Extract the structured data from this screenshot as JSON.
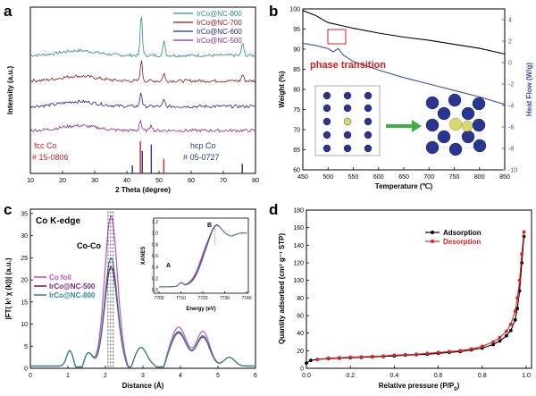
{
  "chart_data": [
    {
      "panel": "a",
      "type": "line",
      "xlabel": "2 Theta  (degree)",
      "ylabel": "Intensity (a.u.)",
      "xlim": [
        10,
        80
      ],
      "xticks": [
        "10",
        "20",
        "30",
        "40",
        "50",
        "60",
        "70",
        "80"
      ],
      "legend_position": "top-right",
      "series": [
        {
          "name": "IrCo@NC-800",
          "color": "#2e8b8b",
          "offset": 3.0,
          "peaks": [
            [
              44.5,
              1.6
            ],
            [
              51.6,
              0.6
            ],
            [
              76.0,
              0.5
            ]
          ]
        },
        {
          "name": "IrCo@NC-700",
          "color": "#8b1a1a",
          "offset": 2.05,
          "peaks": [
            [
              44.5,
              0.8
            ],
            [
              51.5,
              0.3
            ],
            [
              76.0,
              0.25
            ]
          ]
        },
        {
          "name": "IrCo@NC-600",
          "color": "#1f2a8c",
          "offset": 1.1,
          "peaks": [
            [
              44.4,
              0.55
            ],
            [
              51.5,
              0.25
            ]
          ]
        },
        {
          "name": "IrCo@NC-500",
          "color": "#8b2b8b",
          "offset": 0.2,
          "peaks": [
            [
              44.2,
              0.4
            ],
            [
              47.5,
              0.25
            ]
          ]
        }
      ],
      "reference_bars": [
        {
          "name": "fcc Co",
          "card": "# 15-0806",
          "color": "#d02020",
          "positions": [
            44.2,
            51.5,
            75.9
          ],
          "heights": [
            1.0,
            0.45,
            0.25
          ]
        },
        {
          "name": "hcp  Co",
          "card": "# 05-0727",
          "color": "#1f3a9a",
          "positions": [
            41.7,
            44.8,
            47.6,
            75.9
          ],
          "heights": [
            0.25,
            0.7,
            0.9,
            0.3
          ]
        }
      ]
    },
    {
      "panel": "b",
      "type": "line",
      "xlabel": "Temperature (℃)",
      "ylabel": "Weight (%)",
      "y2label": "Heat Flow (W/g)",
      "xlim": [
        450,
        850
      ],
      "ylim": [
        60,
        100
      ],
      "y2lim": [
        -10,
        5
      ],
      "xticks": [
        "450",
        "500",
        "550",
        "600",
        "650",
        "700",
        "750",
        "800",
        "850"
      ],
      "yticks": [
        "60",
        "65",
        "70",
        "75",
        "80",
        "85",
        "90",
        "95",
        "100"
      ],
      "y2ticks": [
        "-10",
        "-8",
        "-6",
        "-4",
        "-2",
        "0",
        "2",
        "4"
      ],
      "annotation": "phase  transition",
      "series": [
        {
          "name": "Weight",
          "color": "#000000",
          "axis": "left",
          "x": [
            450,
            475,
            500,
            525,
            550,
            600,
            650,
            700,
            750,
            800,
            850
          ],
          "y": [
            99.6,
            98.4,
            96.6,
            95.9,
            95.2,
            94.0,
            93.0,
            92.2,
            91.2,
            90.2,
            88.8
          ]
        },
        {
          "name": "Heat Flow",
          "color": "#3a50a8",
          "axis": "right",
          "x": [
            450,
            475,
            500,
            510,
            520,
            530,
            550,
            600,
            650,
            700,
            750,
            800,
            850
          ],
          "y": [
            1.8,
            1.6,
            1.3,
            1.0,
            1.3,
            0.7,
            0.1,
            -0.7,
            -1.4,
            -2.0,
            -2.6,
            -3.2,
            -3.9
          ]
        }
      ]
    },
    {
      "panel": "c",
      "type": "line",
      "title": "Co K-edge",
      "annotation": "Co-Co",
      "xlabel": "Distance (Å)",
      "ylabel": "|FT( k³ χ (k))| (a.u.)",
      "xlim": [
        0,
        6
      ],
      "ylim": [
        0,
        36
      ],
      "xticks": [
        "0",
        "1",
        "2",
        "3",
        "4",
        "5",
        "6"
      ],
      "yticks": [
        "0",
        "5",
        "10",
        "15",
        "20",
        "25",
        "30",
        "35"
      ],
      "legend_position": "middle-left",
      "series": [
        {
          "name": "Co foil",
          "color": "#c84cc8",
          "main": 34,
          "sat": 8.8
        },
        {
          "name": "IrCo@NC-500",
          "color": "#7a1f7a",
          "main": 22.5,
          "sat": 7.5
        },
        {
          "name": "IrCo@NC-800",
          "color": "#2e8b8b",
          "main": 24.5,
          "sat": 7.8
        }
      ],
      "inset": {
        "xlabel": "Energy (eV)",
        "ylabel": "XANES",
        "xlim": [
          7700,
          7740
        ],
        "ylim": [
          0,
          1.2
        ],
        "xticks": [
          "7700",
          "7710",
          "7720",
          "7730",
          "7740"
        ],
        "yticks": [
          "0.0",
          "0.2",
          "0.4",
          "0.6",
          "0.8",
          "1.0",
          "1.2"
        ],
        "labels": [
          "A",
          "B"
        ]
      }
    },
    {
      "panel": "d",
      "type": "line",
      "xlabel": "Relative pressure (P/P",
      "xlabel_sub": "0",
      "xlabel_end": ")",
      "ylabel": "Quantity adsorbed (cm³ g⁻¹ STP)",
      "xlim": [
        0,
        1
      ],
      "ylim": [
        0,
        180
      ],
      "xticks": [
        "0.0",
        "0.2",
        "0.4",
        "0.6",
        "0.8",
        "1.0"
      ],
      "yticks": [
        "0",
        "20",
        "40",
        "60",
        "80",
        "100",
        "120",
        "140",
        "160",
        "180"
      ],
      "legend_position": "top-center",
      "series": [
        {
          "name": "Adsorption",
          "color": "#000000",
          "x": [
            0.0,
            0.02,
            0.05,
            0.1,
            0.15,
            0.2,
            0.25,
            0.3,
            0.35,
            0.4,
            0.45,
            0.5,
            0.55,
            0.6,
            0.65,
            0.7,
            0.75,
            0.8,
            0.85,
            0.88,
            0.91,
            0.93,
            0.95,
            0.96,
            0.97,
            0.98,
            0.99
          ],
          "y": [
            6,
            9,
            10,
            11,
            11.5,
            12,
            12.5,
            13,
            13.5,
            14,
            15,
            15.5,
            16,
            17,
            18,
            19,
            21,
            23,
            27,
            31,
            37,
            43,
            55,
            68,
            88,
            120,
            150
          ]
        },
        {
          "name": "Desorption",
          "color": "#e02020",
          "x": [
            0.99,
            0.98,
            0.97,
            0.96,
            0.95,
            0.93,
            0.91,
            0.88,
            0.85,
            0.8,
            0.75,
            0.7,
            0.65,
            0.6,
            0.55,
            0.5,
            0.45,
            0.4,
            0.35,
            0.3,
            0.25,
            0.2,
            0.15,
            0.1,
            0.05
          ],
          "y": [
            155,
            130,
            100,
            80,
            65,
            50,
            42,
            35,
            30,
            25,
            22,
            20,
            19,
            18,
            17,
            16,
            15.5,
            15,
            14,
            13.5,
            13,
            12.5,
            12,
            11.5,
            10
          ]
        }
      ]
    }
  ],
  "panel_labels": [
    "a",
    "b",
    "c",
    "d"
  ],
  "colors": {
    "co_foil": "#c84cc8",
    "nc500": "#7a1f7a",
    "nc800": "#2e8b8b",
    "arrow": "#3cb043"
  }
}
